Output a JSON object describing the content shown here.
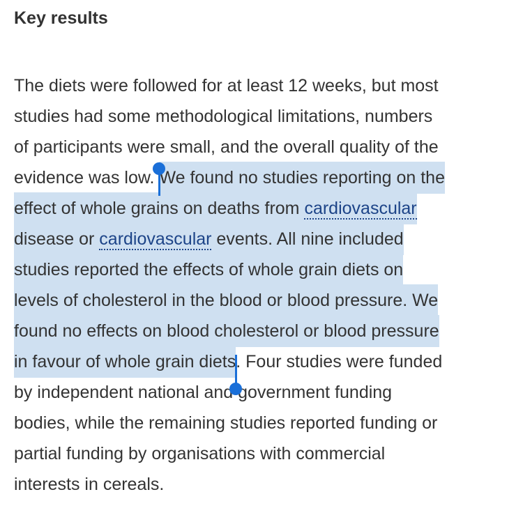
{
  "heading": "Key results",
  "paragraph": {
    "lines": [
      [
        "The diets were followed for at least 12 weeks, but most"
      ],
      [
        "studies had some methodological limitations, numbers"
      ],
      [
        "of participants were small, and the overall quality of the"
      ],
      [
        "evidence was low. ",
        "We found no studies reporting on the"
      ],
      [
        "effect of whole grains on deaths from ",
        "cardiovascular"
      ],
      [
        "disease or ",
        "cardiovascular",
        " events. All nine included"
      ],
      [
        "studies reported the effects of whole grain diets on"
      ],
      [
        "levels of cholesterol in the blood or blood pressure. We"
      ],
      [
        "found no effects on blood cholesterol or blood pressure"
      ],
      [
        "in favour of whole grain diets",
        ". Four studies were funded"
      ],
      [
        "by independent national and government funding"
      ],
      [
        "bodies, while the remaining studies reported funding or"
      ],
      [
        "partial funding by organisations with commercial"
      ],
      [
        "interests in cereals."
      ]
    ]
  }
}
